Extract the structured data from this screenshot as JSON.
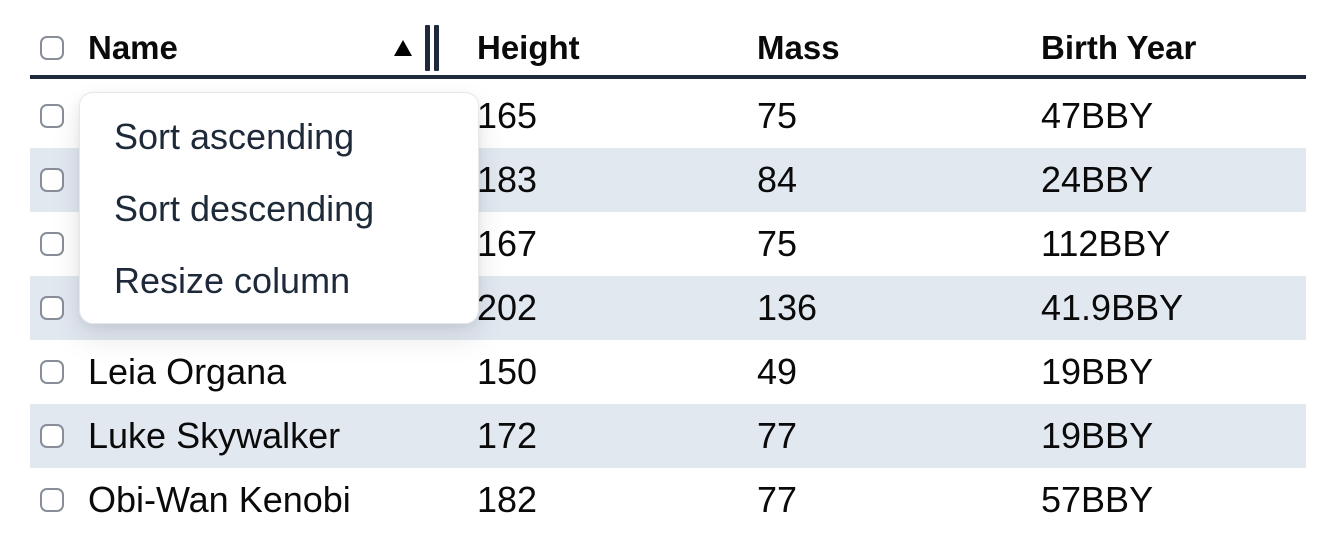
{
  "table": {
    "columns": [
      {
        "label": "Name",
        "sort": "ascending"
      },
      {
        "label": "Height"
      },
      {
        "label": "Mass"
      },
      {
        "label": "Birth Year"
      }
    ],
    "rows": [
      {
        "name": "",
        "height": "165",
        "mass": "75",
        "birth_year": "47BBY"
      },
      {
        "name": "",
        "height": "183",
        "mass": "84",
        "birth_year": "24BBY"
      },
      {
        "name": "",
        "height": "167",
        "mass": "75",
        "birth_year": "112BBY"
      },
      {
        "name": "",
        "height": "202",
        "mass": "136",
        "birth_year": "41.9BBY"
      },
      {
        "name": "Leia Organa",
        "height": "150",
        "mass": "49",
        "birth_year": "19BBY"
      },
      {
        "name": "Luke Skywalker",
        "height": "172",
        "mass": "77",
        "birth_year": "19BBY"
      },
      {
        "name": "Obi-Wan Kenobi",
        "height": "182",
        "mass": "77",
        "birth_year": "57BBY"
      }
    ]
  },
  "context_menu": {
    "items": [
      {
        "label": "Sort ascending"
      },
      {
        "label": "Sort descending"
      },
      {
        "label": "Resize column"
      }
    ]
  },
  "icons": {
    "sort_indicator": "sort-ascending-triangle",
    "resize_handle": "double-bar-resize-handle",
    "checkbox": "empty-checkbox"
  },
  "colors": {
    "row_stripe": "#e2e8f0",
    "header_border": "#1e293b",
    "cell_text": "#0a0a0a",
    "menu_text": "#1e2939",
    "checkbox_border": "#878e98"
  }
}
